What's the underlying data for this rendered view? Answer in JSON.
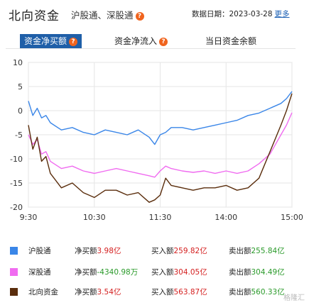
{
  "header": {
    "title": "北向资金",
    "subtitle": "沪股通、深股通",
    "date_label": "数据日期：",
    "date_value": "2023-03-28",
    "more_label": "更多"
  },
  "tabs": [
    {
      "label": "资金净买额",
      "active": true,
      "has_help": true
    },
    {
      "label": "资金净流入",
      "active": false,
      "has_help": true
    },
    {
      "label": "当日资金余额",
      "active": false,
      "has_help": false
    }
  ],
  "colors": {
    "shanghai": "#3a86e8",
    "shenzhen": "#f06cf0",
    "north": "#5a2d0c",
    "accent": "#1f5fa8",
    "help": "#f0641e"
  },
  "chart_data": {
    "type": "line",
    "ylim": [
      -20,
      10
    ],
    "yticks": [
      10,
      5,
      0,
      -5,
      -10,
      -15,
      -20
    ],
    "xticks": [
      "9:30",
      "10:30",
      "11:30",
      "14:00",
      "15:00"
    ],
    "x_unit": "trading minutes from 9:30",
    "series": [
      {
        "name": "沪股通",
        "color": "#3a86e8",
        "x": [
          0,
          4,
          8,
          12,
          16,
          20,
          30,
          40,
          50,
          60,
          70,
          80,
          90,
          100,
          110,
          115,
          120,
          125,
          130,
          140,
          150,
          160,
          170,
          180,
          190,
          200,
          210,
          220,
          230,
          235,
          240
        ],
        "values": [
          2.0,
          -1.0,
          0.5,
          -1.5,
          -1.0,
          -2.5,
          -4.0,
          -3.5,
          -4.5,
          -5.0,
          -4.0,
          -4.5,
          -5.0,
          -4.0,
          -5.5,
          -7.0,
          -5.0,
          -4.5,
          -3.5,
          -3.5,
          -4.0,
          -3.5,
          -3.0,
          -2.5,
          -2.0,
          -1.0,
          -0.5,
          0.5,
          1.5,
          2.5,
          3.98
        ]
      },
      {
        "name": "深股通",
        "color": "#f06cf0",
        "x": [
          0,
          4,
          8,
          12,
          16,
          20,
          30,
          40,
          50,
          60,
          70,
          80,
          90,
          100,
          110,
          115,
          120,
          125,
          130,
          140,
          150,
          160,
          170,
          180,
          190,
          200,
          210,
          220,
          230,
          235,
          240
        ],
        "values": [
          -5.0,
          -7.0,
          -6.0,
          -9.0,
          -8.5,
          -10.5,
          -12.0,
          -11.5,
          -12.5,
          -13.0,
          -12.5,
          -12.0,
          -12.5,
          -13.0,
          -13.5,
          -13.8,
          -12.5,
          -11.5,
          -12.0,
          -12.5,
          -12.8,
          -12.5,
          -13.0,
          -12.5,
          -13.0,
          -12.5,
          -11.0,
          -9.0,
          -5.0,
          -3.0,
          -0.43
        ]
      },
      {
        "name": "北向资金",
        "color": "#5a2d0c",
        "x": [
          0,
          4,
          8,
          12,
          16,
          20,
          30,
          40,
          50,
          60,
          70,
          80,
          90,
          100,
          110,
          115,
          120,
          125,
          130,
          140,
          150,
          160,
          170,
          180,
          190,
          200,
          210,
          220,
          230,
          235,
          240
        ],
        "values": [
          -3.0,
          -8.0,
          -5.5,
          -10.5,
          -9.5,
          -13.0,
          -16.0,
          -15.0,
          -17.0,
          -18.0,
          -16.5,
          -16.5,
          -17.5,
          -17.0,
          -19.0,
          -18.5,
          -17.5,
          -14.0,
          -15.5,
          -16.0,
          -16.5,
          -16.0,
          -16.0,
          -15.5,
          -16.5,
          -16.0,
          -14.0,
          -8.5,
          -3.0,
          0.0,
          3.54
        ]
      }
    ]
  },
  "legend": [
    {
      "name": "沪股通",
      "color": "#3a86e8",
      "net_label": "净买额",
      "net_value": "3.98亿",
      "net_tone": "red",
      "buy_label": "买入额",
      "buy_value": "259.82亿",
      "sell_label": "卖出额",
      "sell_value": "255.84亿"
    },
    {
      "name": "深股通",
      "color": "#f06cf0",
      "net_label": "净买额",
      "net_value": "-4340.98万",
      "net_tone": "green",
      "buy_label": "买入额",
      "buy_value": "304.05亿",
      "sell_label": "卖出额",
      "sell_value": "304.49亿"
    },
    {
      "name": "北向资金",
      "color": "#5a2d0c",
      "net_label": "净买额",
      "net_value": "3.54亿",
      "net_tone": "red",
      "buy_label": "买入额",
      "buy_value": "563.87亿",
      "sell_label": "卖出额",
      "sell_value": "560.33亿"
    }
  ],
  "watermark": "格隆汇"
}
